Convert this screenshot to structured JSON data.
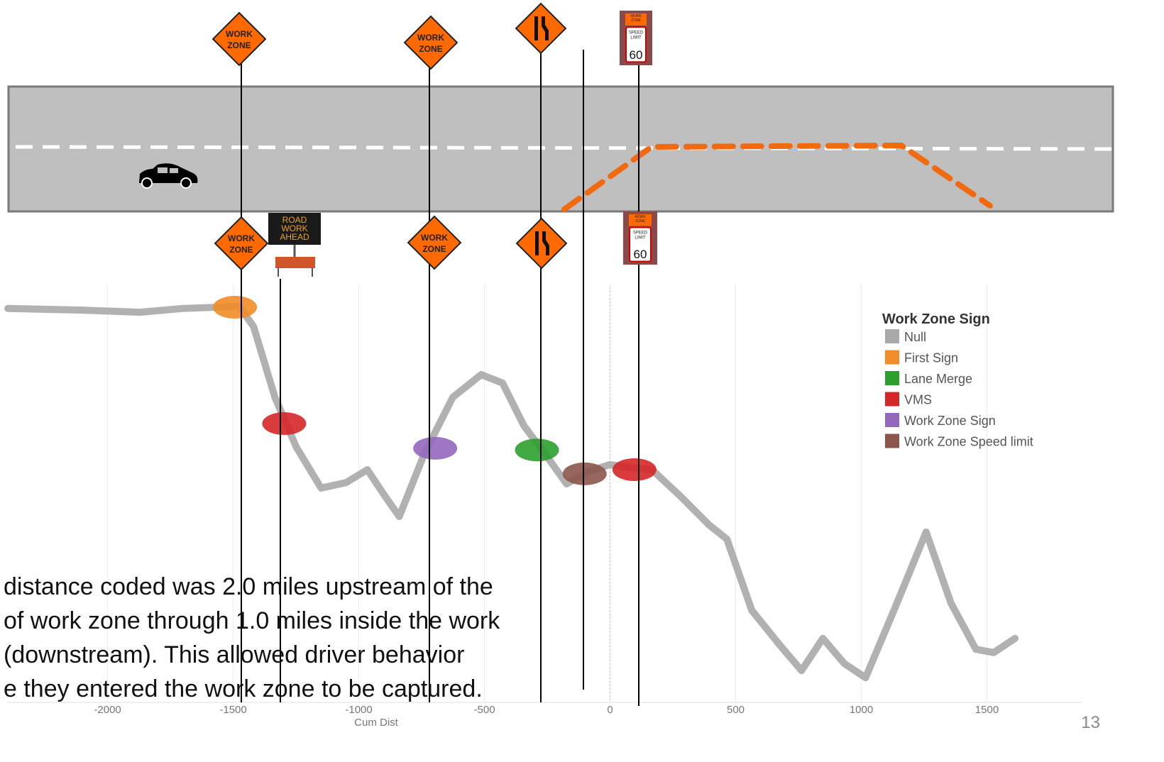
{
  "chart_data": {
    "type": "line",
    "x_label": "Cum Dist",
    "xlim": [
      -2400,
      1880
    ],
    "xticks": [
      -2000,
      -1500,
      -1000,
      -500,
      0,
      500,
      1000,
      1500
    ],
    "ylim": [
      0,
      100
    ],
    "grid": true,
    "legend_title": "Work Zone Sign",
    "legend_position": "right",
    "series": [
      {
        "name": "Null",
        "color": "#a9a9a9",
        "x": [
          -2397,
          -2099,
          -1872,
          -1703,
          -1476,
          -1419,
          -1334,
          -1249,
          -1150,
          -1051,
          -966,
          -895,
          -839,
          -740,
          -626,
          -513,
          -428,
          -343,
          -258,
          -173,
          -88,
          -2,
          111,
          167,
          281,
          394,
          465,
          564,
          677,
          762,
          847,
          932,
          1017,
          1130,
          1258,
          1357,
          1456,
          1527,
          1612
        ],
        "values": [
          94.1,
          93.7,
          93.2,
          94.1,
          94.6,
          89.8,
          72.9,
          61.0,
          51.2,
          52.5,
          55.6,
          49.2,
          44.4,
          59.3,
          72.9,
          78.3,
          76.3,
          66.1,
          59.3,
          52.2,
          55.1,
          56.8,
          55.9,
          55.6,
          49.2,
          42.4,
          39.0,
          22.0,
          13.6,
          7.6,
          15.3,
          9.3,
          5.9,
          22.0,
          40.7,
          23.7,
          12.7,
          11.9,
          15.3
        ]
      },
      {
        "name": "First Sign",
        "color": "#f28c28",
        "x": [
          -1493
        ],
        "values": [
          94.4
        ]
      },
      {
        "name": "Lane Merge",
        "color": "#2ca02c",
        "x": [
          -291
        ],
        "values": [
          60.3
        ]
      },
      {
        "name": "VMS",
        "color": "#d62728",
        "x": [
          -1297,
          97
        ],
        "values": [
          66.6,
          55.6
        ]
      },
      {
        "name": "Work Zone Sign",
        "color": "#9467bd",
        "x": [
          -696
        ],
        "values": [
          60.7
        ]
      },
      {
        "name": "Work Zone Speed limit",
        "color": "#8c564b",
        "x": [
          -101
        ],
        "values": [
          54.6
        ]
      }
    ]
  },
  "annotation": [
    "distance coded was 2.0 miles upstream of the",
    "of work zone through 1.0 miles inside the work",
    "(downstream).  This allowed driver behavior",
    "e they entered the work zone to be captured."
  ],
  "page_number": 13,
  "signs": {
    "work_zone": [
      "WORK",
      "ZONE"
    ],
    "vms": [
      "ROAD",
      "WORK",
      "AHEAD"
    ],
    "speed_limit_label": [
      "SPEED",
      "LIMIT"
    ],
    "speed_limit_value": 60
  }
}
